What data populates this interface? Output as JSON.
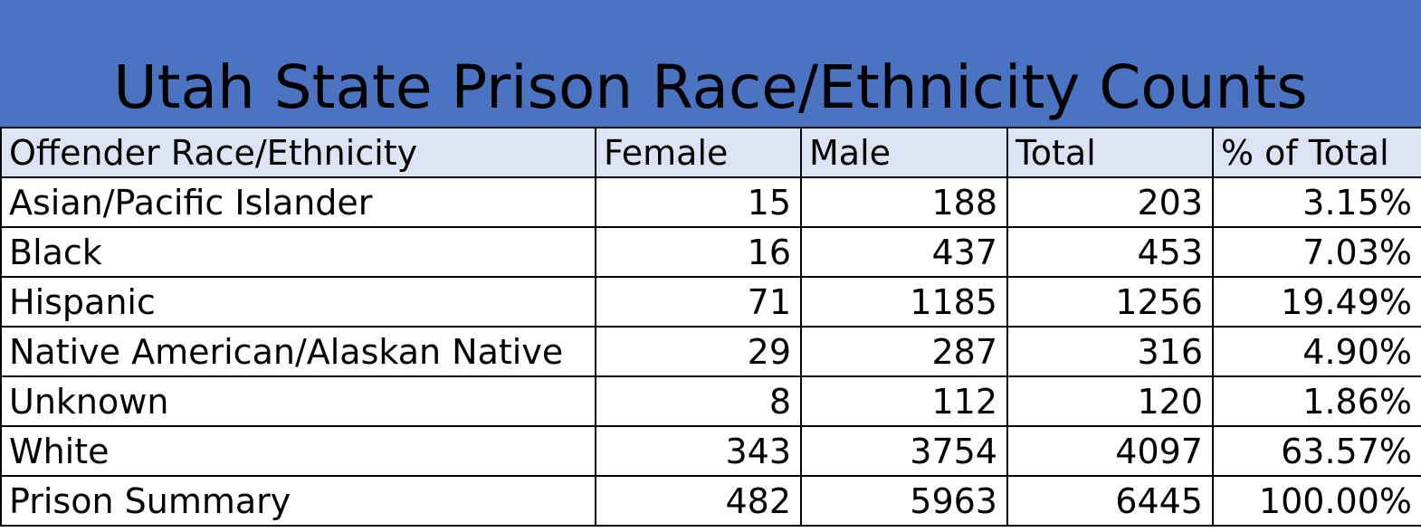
{
  "chart_data": {
    "type": "table",
    "title": "Utah State Prison Race/Ethnicity Counts",
    "columns": [
      "Offender Race/Ethnicity",
      "Female",
      "Male",
      "Total",
      "% of Total"
    ],
    "rows": [
      {
        "label": "Asian/Pacific Islander",
        "female": "15",
        "male": "188",
        "total": "203",
        "pct": "3.15%"
      },
      {
        "label": "Black",
        "female": "16",
        "male": "437",
        "total": "453",
        "pct": "7.03%"
      },
      {
        "label": "Hispanic",
        "female": "71",
        "male": "1185",
        "total": "1256",
        "pct": "19.49%"
      },
      {
        "label": "Native American/Alaskan Native",
        "female": "29",
        "male": "287",
        "total": "316",
        "pct": "4.90%"
      },
      {
        "label": "Unknown",
        "female": "8",
        "male": "112",
        "total": "120",
        "pct": "1.86%"
      },
      {
        "label": "White",
        "female": "343",
        "male": "3754",
        "total": "4097",
        "pct": "63.57%"
      }
    ],
    "summary": {
      "label": "Prison Summary",
      "female": "482",
      "male": "5963",
      "total": "6445",
      "pct": "100.00%"
    }
  },
  "colors": {
    "title_band": "#4a73c2",
    "header_row": "#dce3f2",
    "grid": "#000000"
  }
}
